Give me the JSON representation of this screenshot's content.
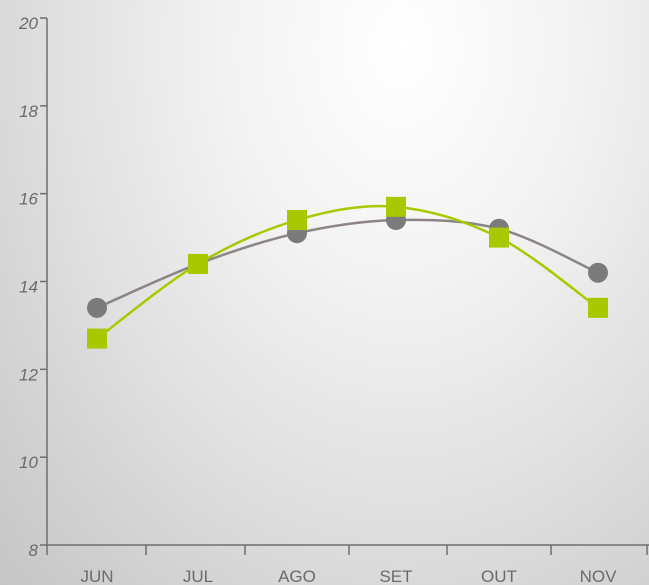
{
  "chart_data": {
    "type": "line",
    "categories": [
      "JUN",
      "JUL",
      "AGO",
      "SET",
      "OUT",
      "NOV"
    ],
    "ylim": [
      8,
      20
    ],
    "yticks": [
      8,
      10,
      12,
      14,
      16,
      18,
      20
    ],
    "grid": false,
    "series": [
      {
        "marker": "circle",
        "color": "#7b7b7b",
        "line_color": "#8c8486",
        "values": [
          13.4,
          14.4,
          15.1,
          15.4,
          15.2,
          14.2
        ]
      },
      {
        "marker": "square",
        "color": "#a8c800",
        "line_color": "#a8c800",
        "values": [
          12.7,
          14.4,
          15.4,
          15.7,
          15.0,
          13.4
        ]
      }
    ]
  }
}
